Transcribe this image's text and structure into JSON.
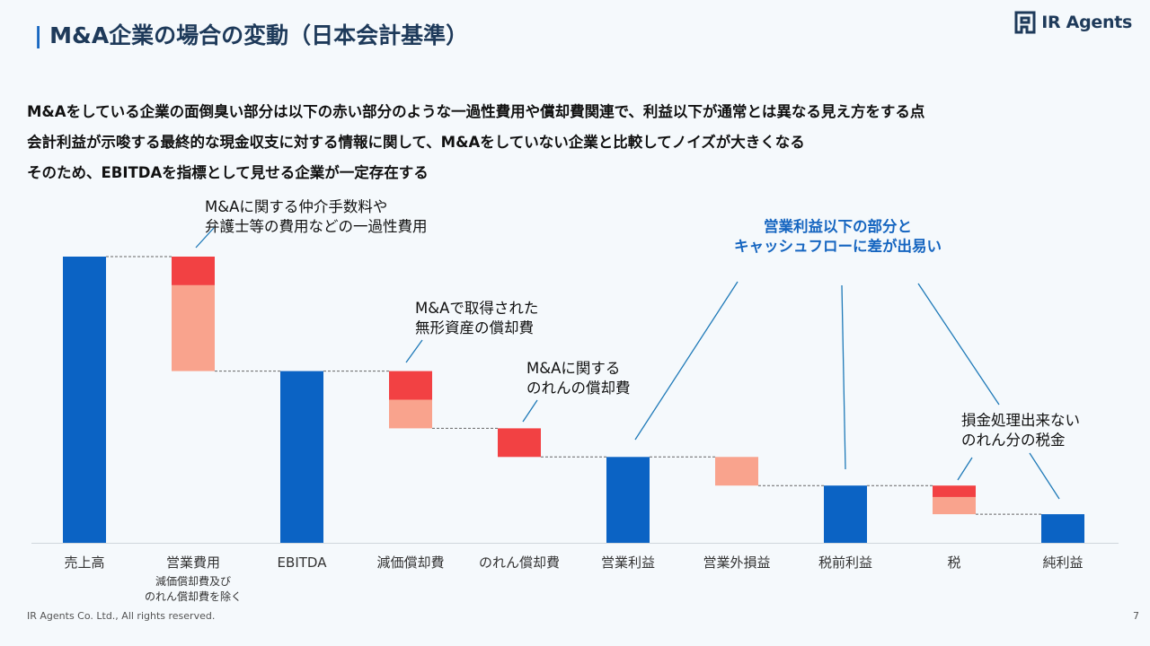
{
  "header": {
    "title": "M&A企業の場合の変動（日本会計基準）",
    "title_bar": "|",
    "logo_text": "IR Agents",
    "logo_icon": "ir-agents-logo-icon"
  },
  "lead_lines": [
    "M&Aをしている企業の面倒臭い部分は以下の赤い部分のような一過性費用や償却費関連で、利益以下が通常とは異なる見え方をする点",
    "会計利益が示唆する最終的な現金収支に対する情報に関して、M&Aをしていない企業と比較してノイズが大きくなる",
    "そのため、EBITDAを指標として見せる企業が一定存在する"
  ],
  "annotations": {
    "one_time": [
      "M&Aに関する仲介手数料や",
      "弁護士等の費用などの一過性費用"
    ],
    "intangible": [
      "M&Aで取得された",
      "無形資産の償却費"
    ],
    "goodwill": [
      "M&Aに関する",
      "のれんの償却費"
    ],
    "cashflow_gap": [
      "営業利益以下の部分と",
      "キャッシュフローに差が出易い"
    ],
    "tax": [
      "損金処理出来ない",
      "のれん分の税金"
    ]
  },
  "chart_data": {
    "type": "bar",
    "subtype": "waterfall",
    "categories": [
      "売上高",
      "営業費用",
      "EBITDA",
      "減価償却費",
      "のれん償却費",
      "営業利益",
      "営業外損益",
      "税前利益",
      "税",
      "純利益"
    ],
    "category_notes": {
      "営業費用": [
        "減価償却費及び",
        "のれん償却費を除く"
      ]
    },
    "bars": [
      {
        "kind": "total",
        "start": 0,
        "end": 10
      },
      {
        "kind": "decrease",
        "start": 10,
        "end": 6,
        "segments": [
          {
            "value": 1,
            "color": "red"
          },
          {
            "value": 3,
            "color": "pink"
          }
        ]
      },
      {
        "kind": "total",
        "start": 0,
        "end": 6
      },
      {
        "kind": "decrease",
        "start": 6,
        "end": 4,
        "segments": [
          {
            "value": 1,
            "color": "red"
          },
          {
            "value": 1,
            "color": "pink"
          }
        ]
      },
      {
        "kind": "decrease",
        "start": 4,
        "end": 3,
        "segments": [
          {
            "value": 1,
            "color": "red"
          }
        ]
      },
      {
        "kind": "total",
        "start": 0,
        "end": 3
      },
      {
        "kind": "decrease",
        "start": 3,
        "end": 2,
        "segments": [
          {
            "value": 1,
            "color": "pink"
          }
        ]
      },
      {
        "kind": "total",
        "start": 0,
        "end": 2
      },
      {
        "kind": "decrease",
        "start": 2,
        "end": 1,
        "segments": [
          {
            "value": 0.4,
            "color": "red"
          },
          {
            "value": 0.6,
            "color": "pink"
          }
        ]
      },
      {
        "kind": "total",
        "start": 0,
        "end": 1
      }
    ],
    "colors": {
      "total": "#0b63c4",
      "red": "#f24143",
      "pink": "#f9a38d",
      "axis": "#cfd6dc",
      "connector": "#666666",
      "callout": "#1f7ab8"
    },
    "ylim": [
      0,
      10
    ],
    "grid": false,
    "legend": "none"
  },
  "footer": {
    "copyright": "IR Agents Co. Ltd., All rights reserved.",
    "page": "7"
  }
}
